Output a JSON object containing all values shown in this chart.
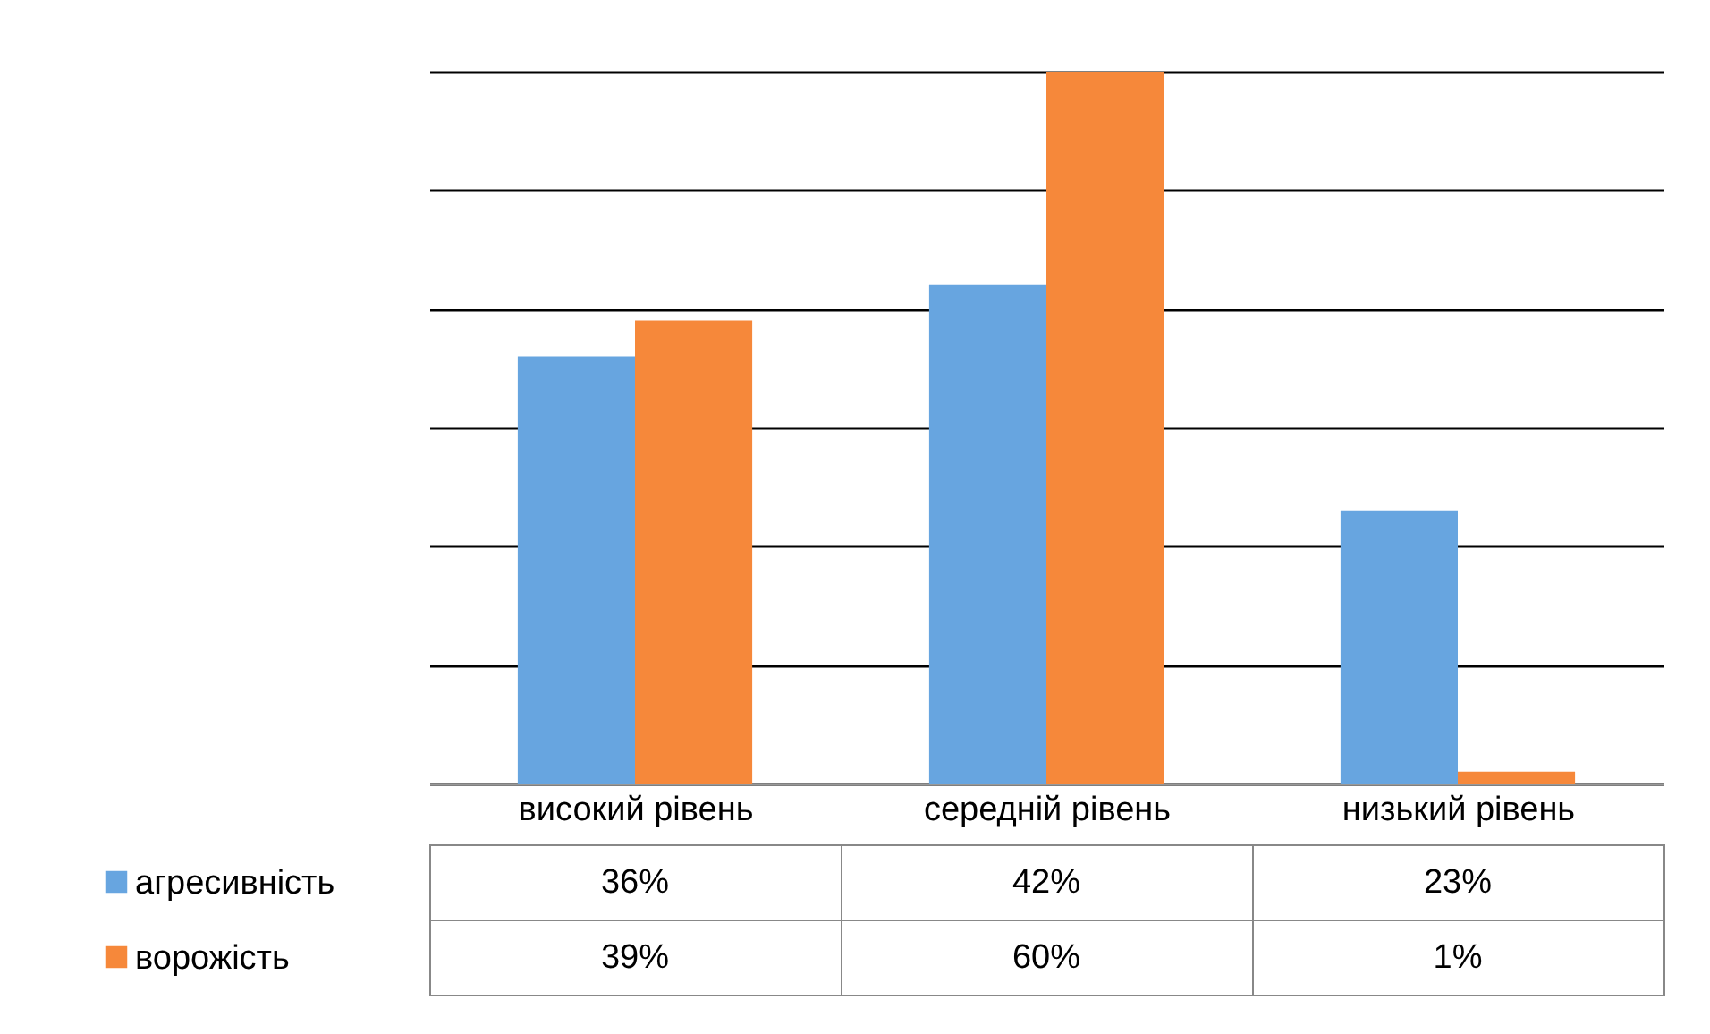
{
  "chart_data": {
    "type": "bar",
    "categories": [
      "високий рівень",
      "середній рівень",
      "низький рівень"
    ],
    "series": [
      {
        "name": "агресивність",
        "color": "#67a5e0",
        "values": [
          36,
          42,
          23
        ],
        "value_labels": [
          "36%",
          "42%",
          "23%"
        ]
      },
      {
        "name": "ворожість",
        "color": "#f6883a",
        "values": [
          39,
          60,
          1
        ],
        "value_labels": [
          "39%",
          "60%",
          "1%"
        ]
      }
    ],
    "ylim": [
      0,
      60
    ],
    "yticks": [
      {
        "value": 0,
        "label": null
      },
      {
        "value": 10,
        "label": null
      },
      {
        "value": 20,
        "label": null
      },
      {
        "value": 30,
        "label": null
      },
      {
        "value": 40,
        "label": null
      },
      {
        "value": 50,
        "label": null
      },
      {
        "value": 60,
        "label": null
      }
    ],
    "grid": "y",
    "legend": "bottom",
    "tick_labels": false
  }
}
